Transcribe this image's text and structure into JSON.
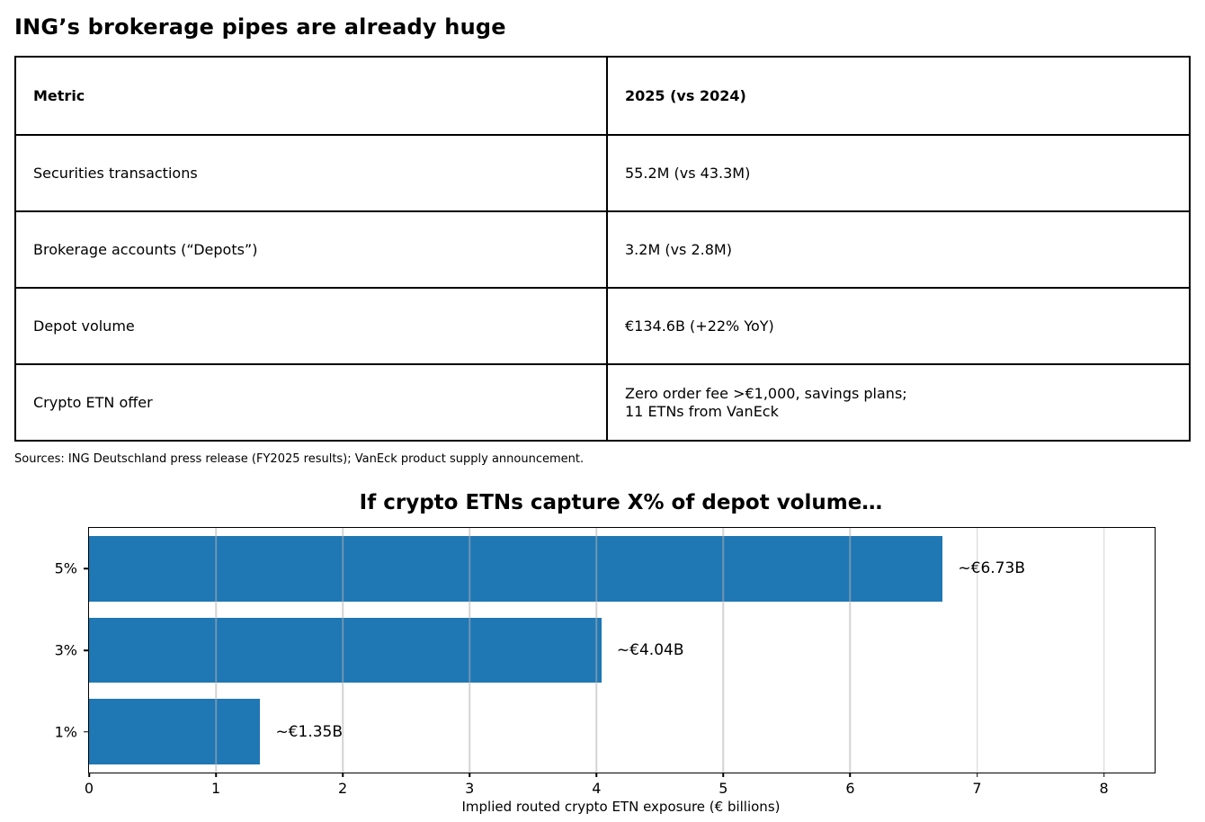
{
  "page": {
    "title": "ING’s brokerage pipes are already huge",
    "sources": "Sources: ING Deutschland press release (FY2025 results); VanEck product supply announcement."
  },
  "table": {
    "headers": [
      "Metric",
      "2025 (vs 2024)"
    ],
    "rows": [
      {
        "metric": "Securities transactions",
        "value": "55.2M (vs 43.3M)"
      },
      {
        "metric": "Brokerage accounts (“Depots”)",
        "value": "3.2M (vs 2.8M)"
      },
      {
        "metric": "Depot volume",
        "value": "€134.6B (+22% YoY)"
      },
      {
        "metric": "Crypto ETN offer",
        "value": "Zero order fee >€1,000, savings plans;\n11 ETNs from VanEck"
      }
    ]
  },
  "chart_data": {
    "type": "bar",
    "orientation": "horizontal",
    "title": "If crypto ETNs capture X% of depot volume…",
    "categories": [
      "5%",
      "3%",
      "1%"
    ],
    "values": [
      6.73,
      4.04,
      1.35
    ],
    "bar_labels": [
      "~€6.73B",
      "~€4.04B",
      "~€1.35B"
    ],
    "xlabel": "Implied routed crypto ETN exposure (€ billions)",
    "xlim": [
      0,
      8.4
    ],
    "xticks": [
      0,
      1,
      2,
      3,
      4,
      5,
      6,
      7,
      8
    ],
    "bar_color": "#1f77b4",
    "grid": true,
    "grid_color": "#b0b0b0",
    "legend": "none"
  }
}
